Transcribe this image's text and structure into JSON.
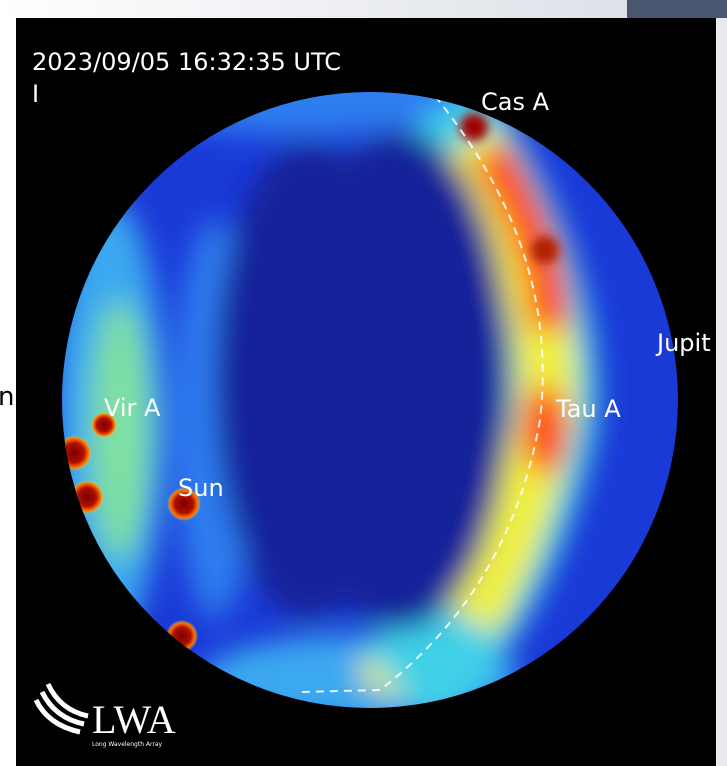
{
  "timestamp": "2023/09/05 16:32:35 UTC",
  "stokes": "I",
  "sources": [
    {
      "label": "Cas A"
    },
    {
      "label": "Vir A"
    },
    {
      "label": "Sun"
    },
    {
      "label": "Tau A"
    },
    {
      "label": "Jupit"
    }
  ],
  "edge_text": "n",
  "logo": {
    "title": "LWA",
    "subtitle": "Long Wavelength Array"
  }
}
